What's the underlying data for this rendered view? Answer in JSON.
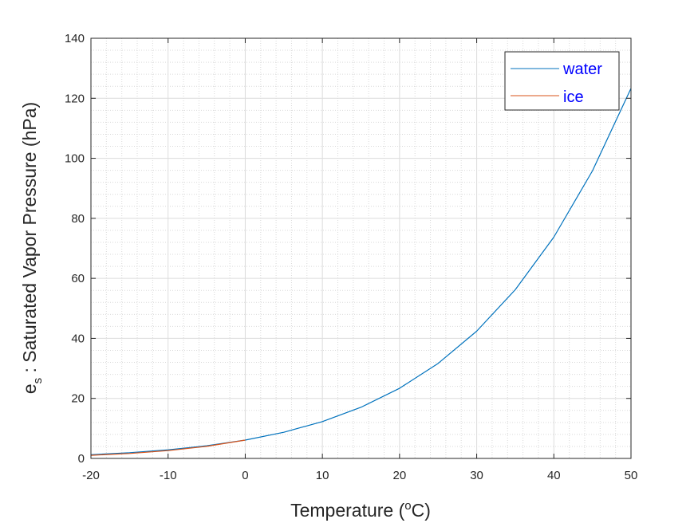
{
  "chart_data": {
    "type": "line",
    "xlabel": "Temperature (oC)",
    "xlabel_main": "Temperature (",
    "xlabel_sup": "o",
    "xlabel_end": "C)",
    "ylabel": "es : Saturated Vapor Pressure (hPa)",
    "ylabel_main": "e",
    "ylabel_sub": "s",
    "ylabel_rest": " : Saturated Vapor Pressure (hPa)",
    "xlim": [
      -20,
      50
    ],
    "ylim": [
      0,
      140
    ],
    "xticks": [
      -20,
      -10,
      0,
      10,
      20,
      30,
      40,
      50
    ],
    "yticks": [
      0,
      20,
      40,
      60,
      80,
      100,
      120,
      140
    ],
    "grid": true,
    "minor_grid": true,
    "legend_position": "top-right",
    "series": [
      {
        "name": "water",
        "color": "#0072BD",
        "x": [
          -20,
          -15,
          -10,
          -5,
          0,
          5,
          10,
          15,
          20,
          25,
          30,
          35,
          40,
          45,
          50
        ],
        "y": [
          1.25,
          1.91,
          2.86,
          4.22,
          6.11,
          8.72,
          12.27,
          17.04,
          23.37,
          31.66,
          42.41,
          56.22,
          73.75,
          95.8,
          123.3
        ]
      },
      {
        "name": "ice",
        "color": "#D95319",
        "x": [
          -20,
          -15,
          -10,
          -5,
          0
        ],
        "y": [
          1.03,
          1.65,
          2.6,
          4.02,
          6.11
        ]
      }
    ]
  }
}
